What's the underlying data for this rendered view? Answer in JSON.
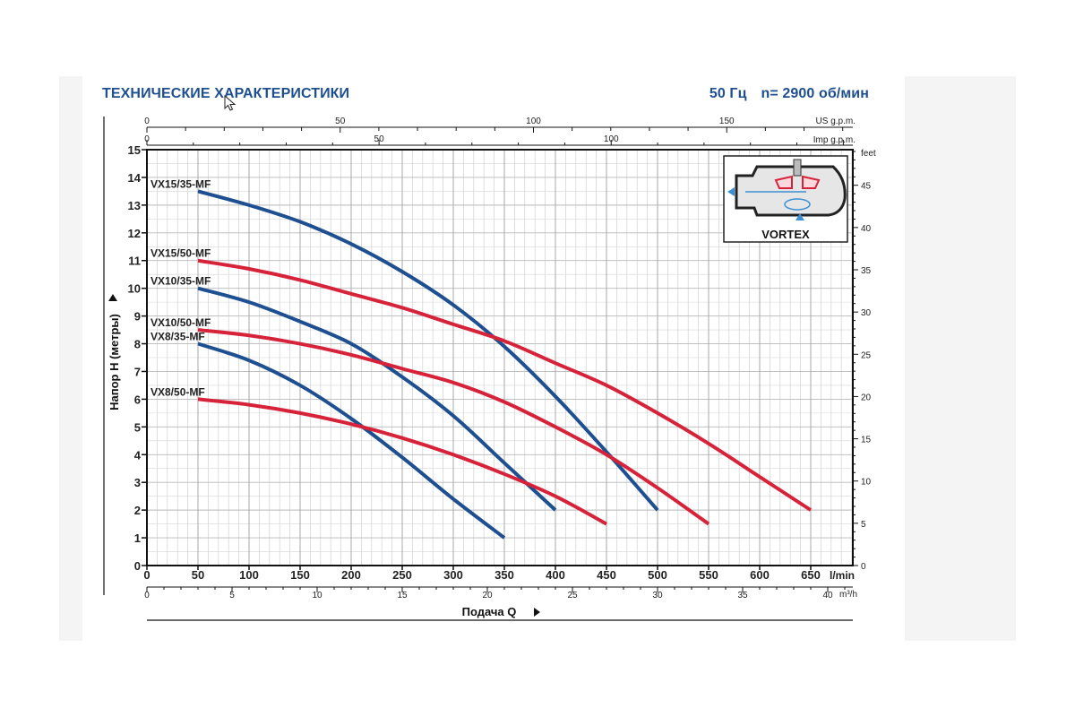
{
  "header": {
    "title": "ТЕХНИЧЕСКИЕ ХАРАКТЕРИСТИКИ",
    "frequency": "50 Гц",
    "speed": "n= 2900 об/мин"
  },
  "inset": {
    "label": "VORTEX",
    "icon": "vortex-pump-section-icon"
  },
  "chart_data": {
    "type": "line",
    "title": "",
    "xlabel": "Подача Q",
    "ylabel": "Напор H (метры)",
    "xlim": [
      0,
      700
    ],
    "ylim": [
      0,
      15
    ],
    "grid": true,
    "x_unit": "l/min",
    "x_ticks": [
      0,
      50,
      100,
      150,
      200,
      250,
      300,
      350,
      400,
      450,
      500,
      550,
      600,
      650
    ],
    "y_ticks": [
      0,
      1,
      2,
      3,
      4,
      5,
      6,
      7,
      8,
      9,
      10,
      11,
      12,
      13,
      14,
      15
    ],
    "secondary_axes": {
      "m3h": {
        "unit": "m³/h",
        "ticks": [
          0,
          5,
          10,
          15,
          20,
          25,
          30,
          35,
          40
        ]
      },
      "us_gpm": {
        "unit": "US g.p.m.",
        "ticks": [
          0,
          50,
          100,
          150
        ]
      },
      "imp_gpm": {
        "unit": "Imp g.p.m.",
        "ticks": [
          0,
          50,
          100
        ]
      },
      "feet": {
        "unit": "feet",
        "ticks": [
          0,
          5,
          10,
          15,
          20,
          25,
          30,
          35,
          40,
          45
        ]
      }
    },
    "series": [
      {
        "name": "VX15/35-MF",
        "color": "#1d4f91",
        "x": [
          50,
          100,
          150,
          200,
          250,
          300,
          350,
          400,
          450,
          500
        ],
        "y": [
          13.5,
          13.0,
          12.4,
          11.6,
          10.6,
          9.4,
          7.9,
          6.1,
          4.1,
          2.0
        ]
      },
      {
        "name": "VX15/50-MF",
        "color": "#d6233a",
        "x": [
          50,
          100,
          150,
          200,
          250,
          300,
          350,
          400,
          450,
          500,
          550,
          600,
          650
        ],
        "y": [
          11.0,
          10.7,
          10.3,
          9.8,
          9.3,
          8.7,
          8.1,
          7.3,
          6.5,
          5.5,
          4.4,
          3.2,
          2.0
        ]
      },
      {
        "name": "VX10/35-MF",
        "color": "#1d4f91",
        "x": [
          50,
          100,
          150,
          200,
          250,
          300,
          350,
          400
        ],
        "y": [
          10.0,
          9.5,
          8.8,
          8.0,
          6.8,
          5.4,
          3.7,
          2.0
        ]
      },
      {
        "name": "VX10/50-MF",
        "color": "#d6233a",
        "x": [
          50,
          100,
          150,
          200,
          250,
          300,
          350,
          400,
          450,
          500,
          550
        ],
        "y": [
          8.5,
          8.3,
          8.0,
          7.6,
          7.1,
          6.6,
          5.9,
          5.0,
          4.0,
          2.8,
          1.5
        ]
      },
      {
        "name": "VX8/35-MF",
        "color": "#1d4f91",
        "x": [
          50,
          100,
          150,
          200,
          250,
          300,
          350
        ],
        "y": [
          8.0,
          7.4,
          6.5,
          5.3,
          3.9,
          2.4,
          1.0
        ]
      },
      {
        "name": "VX8/50-MF",
        "color": "#d6233a",
        "x": [
          50,
          100,
          150,
          200,
          250,
          300,
          350,
          400,
          450
        ],
        "y": [
          6.0,
          5.8,
          5.5,
          5.1,
          4.6,
          4.0,
          3.3,
          2.5,
          1.5
        ]
      }
    ]
  }
}
